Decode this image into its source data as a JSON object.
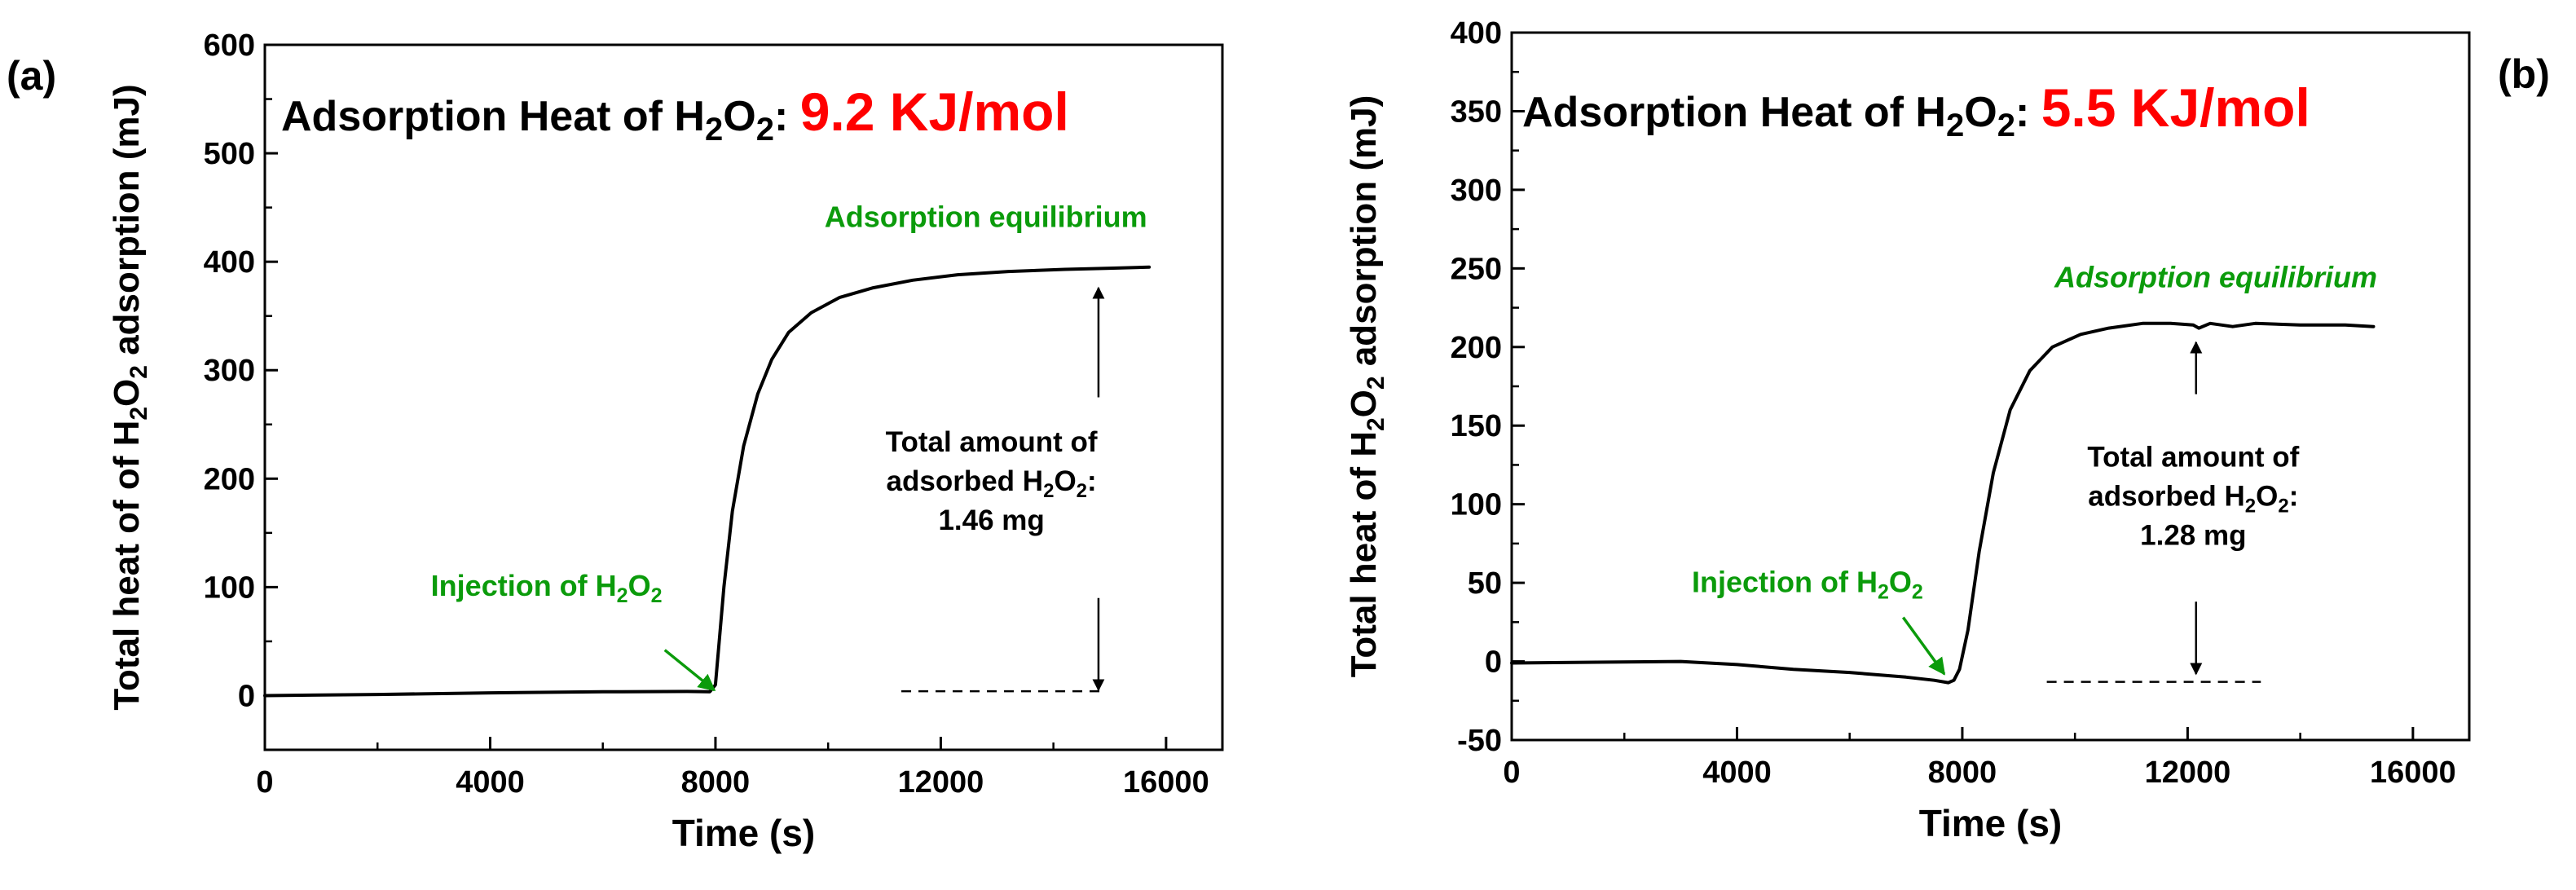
{
  "chart_data": [
    {
      "type": "line",
      "panel_label": "(a)",
      "title_prefix": "Adsorption Heat of H",
      "title_sub2": "2",
      "title_o": "O",
      "title_sub2b": "2",
      "title_colon": ":",
      "title_value": "9.2 KJ/mol",
      "title_value_color": "#ff0000",
      "xlabel": "Time (s)",
      "ylabel": {
        "pre": "Total heat of of H",
        "s1": "2",
        "mid": "O",
        "s2": "2",
        "post": " adsorption (mJ)"
      },
      "xlim": [
        0,
        17000
      ],
      "ylim": [
        -50,
        600
      ],
      "xticks": [
        0,
        4000,
        8000,
        12000,
        16000
      ],
      "xtick_labels": [
        "0",
        "4000",
        "8000",
        "12000",
        "16000"
      ],
      "yticks": [
        0,
        100,
        200,
        300,
        400,
        500,
        600
      ],
      "ytick_labels": [
        "0",
        "100",
        "200",
        "300",
        "400",
        "500",
        "600"
      ],
      "x_minor_step": 2000,
      "y_minor_step": 50,
      "series": [
        {
          "name": "heat",
          "x": [
            0,
            2000,
            4000,
            6000,
            7500,
            7900,
            8000,
            8050,
            8150,
            8300,
            8500,
            8750,
            9000,
            9300,
            9700,
            10200,
            10800,
            11500,
            12300,
            13200,
            14200,
            15000,
            15700
          ],
          "y": [
            0,
            1,
            2.5,
            3.5,
            3.8,
            3.5,
            10,
            40,
            100,
            170,
            230,
            278,
            310,
            335,
            353,
            367,
            376,
            383,
            388,
            391,
            393,
            394,
            395
          ]
        }
      ],
      "baseline": {
        "x": [
          11300,
          14900
        ],
        "y": 4
      },
      "arrow_up": {
        "x": 14800,
        "from": 275,
        "to": 376
      },
      "arrow_down": {
        "x": 14800,
        "from": 90,
        "to": 5
      },
      "annotation_equilibrium": {
        "text": "Adsorption equilibrium",
        "color": "#0b9b0b",
        "x": 12800,
        "y": 432
      },
      "annotation_amount": {
        "line1": "Total amount of",
        "line2_pre": "adsorbed H",
        "s1": "2",
        "mid": "O",
        "s2": "2",
        "colon": ":",
        "line3": "1.46 mg",
        "x": 12900,
        "y": 225
      },
      "annotation_injection": {
        "pre": "Injection of H",
        "s1": "2",
        "mid": "O",
        "s2": "2",
        "color": "#0b9b0b",
        "x": 5000,
        "y": 92
      },
      "injection_arrow": {
        "from": [
          7100,
          42
        ],
        "to": [
          7980,
          5
        ]
      }
    },
    {
      "type": "line",
      "panel_label": "(b)",
      "title_prefix": "Adsorption Heat of H",
      "title_sub2": "2",
      "title_o": "O",
      "title_sub2b": "2",
      "title_colon": ":",
      "title_value": "5.5 KJ/mol",
      "title_value_color": "#ff0000",
      "xlabel": "Time (s)",
      "ylabel": {
        "pre": "Total heat of H",
        "s1": "2",
        "mid": "O",
        "s2": "2",
        "post": " adsorption (mJ)"
      },
      "xlim": [
        0,
        17000
      ],
      "ylim": [
        -50,
        400
      ],
      "xticks": [
        0,
        4000,
        8000,
        12000,
        16000
      ],
      "xtick_labels": [
        "0",
        "4000",
        "8000",
        "12000",
        "16000"
      ],
      "yticks": [
        -50,
        0,
        50,
        100,
        150,
        200,
        250,
        300,
        350,
        400
      ],
      "ytick_labels": [
        "-50",
        "0",
        "50",
        "100",
        "150",
        "200",
        "250",
        "300",
        "350",
        "400"
      ],
      "x_minor_step": 2000,
      "y_minor_step": 25,
      "series": [
        {
          "name": "heat",
          "x": [
            0,
            1500,
            3000,
            4000,
            5000,
            6000,
            7000,
            7500,
            7750,
            7850,
            7950,
            8100,
            8300,
            8550,
            8850,
            9200,
            9600,
            10100,
            10600,
            11200,
            11700,
            12100,
            12200,
            12400,
            12800,
            13200,
            14000,
            14800,
            15300
          ],
          "y": [
            -1,
            -0.5,
            0,
            -2,
            -5,
            -7,
            -10,
            -12,
            -13.5,
            -12,
            -5,
            20,
            70,
            120,
            160,
            185,
            200,
            208,
            212,
            215,
            215,
            214,
            212,
            215,
            213,
            215,
            214,
            214,
            213
          ]
        }
      ],
      "baseline": {
        "x": [
          9500,
          13300
        ],
        "y": -13
      },
      "arrow_up": {
        "x": 12150,
        "from": 170,
        "to": 203
      },
      "arrow_down": {
        "x": 12150,
        "from": 38,
        "to": -8
      },
      "annotation_equilibrium": {
        "text": "Adsorption equilibrium",
        "color": "#0b9b0b",
        "x": 12500,
        "y": 238,
        "italic": true
      },
      "annotation_amount": {
        "line1": "Total amount of",
        "line2_pre": "adsorbed H",
        "s1": "2",
        "mid": "O",
        "s2": "2",
        "colon": ":",
        "line3": "1.28 mg",
        "x": 12100,
        "y": 124
      },
      "annotation_injection": {
        "pre": "Injection of H",
        "s1": "2",
        "mid": "O",
        "s2": "2",
        "color": "#0b9b0b",
        "x": 5250,
        "y": 44
      },
      "injection_arrow": {
        "from": [
          6950,
          28
        ],
        "to": [
          7680,
          -8
        ]
      }
    }
  ]
}
